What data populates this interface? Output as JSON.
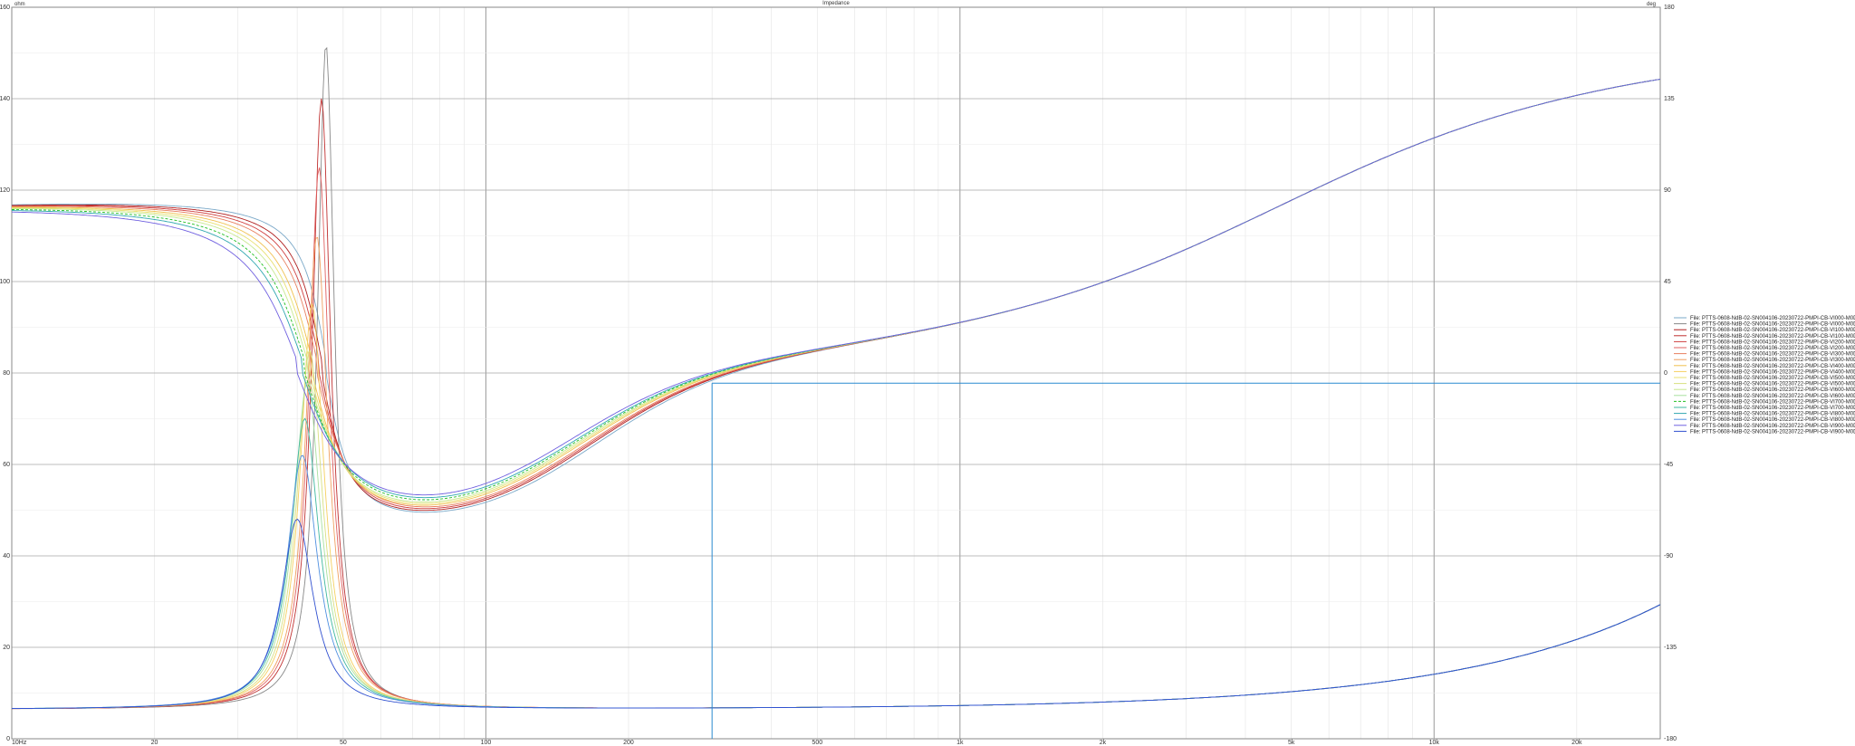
{
  "chart_data": {
    "type": "line",
    "title": "Impedance",
    "ylabel_left": "ohm",
    "ylabel_right": "deg",
    "x_scale": "log",
    "xlim": [
      10,
      30000
    ],
    "ylim_left": [
      0,
      160
    ],
    "ylim_right": [
      -180,
      180
    ],
    "grid": true,
    "legend_placement": "right",
    "x_tick_labels": [
      "10Hz",
      "20",
      "50",
      "100",
      "200",
      "500",
      "1k",
      "2k",
      "5k",
      "10k",
      "20k"
    ],
    "x_ticks": [
      10,
      20,
      50,
      100,
      200,
      500,
      1000,
      2000,
      5000,
      10000,
      20000
    ],
    "y_left_ticks": [
      0,
      20,
      40,
      60,
      80,
      100,
      120,
      140,
      160
    ],
    "y_right_ticks": [
      -180,
      -135,
      -90,
      -45,
      0,
      45,
      90,
      135,
      180
    ],
    "cursor": {
      "x": 300,
      "y_right": -5
    },
    "series": [
      {
        "name": "File: PTTS-0608-NdB-02-SN004106-20230722-PMPI-CB-VI000-M0D.ZMA (deg)",
        "color": "#7aa8c8",
        "kind": "deg",
        "fs": 46,
        "h": 95,
        "w": 0.18
      },
      {
        "name": "File: PTTS-0608-NdB-02-SN004106-20230722-PMPI-CB-VI000-M0D.ZMA (ohm)",
        "color": "#888888",
        "kind": "ohm",
        "fs": 46,
        "h": 152,
        "w": 0.1
      },
      {
        "name": "File: PTTS-0608-NdB-02-SN004106-20230722-PMPI-CB-VI100-M0D.ZMA (deg)",
        "color": "#b02020",
        "kind": "deg",
        "fs": 45,
        "h": 93,
        "w": 0.2
      },
      {
        "name": "File: PTTS-0608-NdB-02-SN004106-20230722-PMPI-CB-VI100-M0D.ZMA (ohm)",
        "color": "#c03030",
        "kind": "ohm",
        "fs": 45,
        "h": 140,
        "w": 0.11
      },
      {
        "name": "File: PTTS-0608-NdB-02-SN004106-20230722-PMPI-CB-VI200-M0D.ZMA (deg)",
        "color": "#d04040",
        "kind": "deg",
        "fs": 44.5,
        "h": 92,
        "w": 0.22
      },
      {
        "name": "File: PTTS-0608-NdB-02-SN004106-20230722-PMPI-CB-VI200-M0D.ZMA (ohm)",
        "color": "#e06060",
        "kind": "ohm",
        "fs": 44.5,
        "h": 125,
        "w": 0.12
      },
      {
        "name": "File: PTTS-0608-NdB-02-SN004106-20230722-PMPI-CB-VI300-M0D.ZMA (deg)",
        "color": "#e88060",
        "kind": "deg",
        "fs": 44,
        "h": 90,
        "w": 0.24
      },
      {
        "name": "File: PTTS-0608-NdB-02-SN004106-20230722-PMPI-CB-VI300-M0D.ZMA (ohm)",
        "color": "#f0a060",
        "kind": "ohm",
        "fs": 44,
        "h": 110,
        "w": 0.13
      },
      {
        "name": "File: PTTS-0608-NdB-02-SN004106-20230722-PMPI-CB-VI400-M0D.ZMA (deg)",
        "color": "#f0c050",
        "kind": "deg",
        "fs": 43,
        "h": 88,
        "w": 0.26
      },
      {
        "name": "File: PTTS-0608-NdB-02-SN004106-20230722-PMPI-CB-VI400-M0D.ZMA (ohm)",
        "color": "#f5d060",
        "kind": "ohm",
        "fs": 43,
        "h": 95,
        "w": 0.14
      },
      {
        "name": "File: PTTS-0608-NdB-02-SN004106-20230722-PMPI-CB-VI500-M0D.ZMA (deg)",
        "color": "#e8e070",
        "kind": "deg",
        "fs": 42.5,
        "h": 86,
        "w": 0.28
      },
      {
        "name": "File: PTTS-0608-NdB-02-SN004106-20230722-PMPI-CB-VI500-M0D.ZMA (ohm)",
        "color": "#d8e080",
        "kind": "ohm",
        "fs": 42.5,
        "h": 85,
        "w": 0.15
      },
      {
        "name": "File: PTTS-0608-NdB-02-SN004106-20230722-PMPI-CB-VI600-M0D.ZMA (deg)",
        "color": "#c8e890",
        "kind": "deg",
        "fs": 42,
        "h": 84,
        "w": 0.3
      },
      {
        "name": "File: PTTS-0608-NdB-02-SN004106-20230722-PMPI-CB-VI600-M0D.ZMA (ohm)",
        "color": "#a8e0a0",
        "kind": "ohm",
        "fs": 42,
        "h": 78,
        "w": 0.16
      },
      {
        "name": "File: PTTS-0608-NdB-02-SN004106-20230722-PMPI-CB-VI700-M0D.ZMA (deg)",
        "color": "#22c022",
        "kind": "deg",
        "fs": 41.5,
        "h": 82,
        "w": 0.33,
        "dash": true
      },
      {
        "name": "File: PTTS-0608-NdB-02-SN004106-20230722-PMPI-CB-VI700-M0D.ZMA (ohm)",
        "color": "#40b8a0",
        "kind": "ohm",
        "fs": 41.5,
        "h": 70,
        "w": 0.17
      },
      {
        "name": "File: PTTS-0608-NdB-02-SN004106-20230722-PMPI-CB-VI800-M0D.ZMA (deg)",
        "color": "#30a8b0",
        "kind": "deg",
        "fs": 41,
        "h": 80,
        "w": 0.36
      },
      {
        "name": "File: PTTS-0608-NdB-02-SN004106-20230722-PMPI-CB-VI800-M0D.ZMA (ohm)",
        "color": "#5090e0",
        "kind": "ohm",
        "fs": 41,
        "h": 62,
        "w": 0.18
      },
      {
        "name": "File: PTTS-0608-NdB-02-SN004106-20230722-PMPI-CB-VI900-M0D.ZMA (deg)",
        "color": "#7060e0",
        "kind": "deg",
        "fs": 40,
        "h": 76,
        "w": 0.4
      },
      {
        "name": "File: PTTS-0608-NdB-02-SN004106-20230722-PMPI-CB-VI900-M0D.ZMA (ohm)",
        "color": "#3050d0",
        "kind": "ohm",
        "fs": 40,
        "h": 48,
        "w": 0.19
      }
    ]
  }
}
